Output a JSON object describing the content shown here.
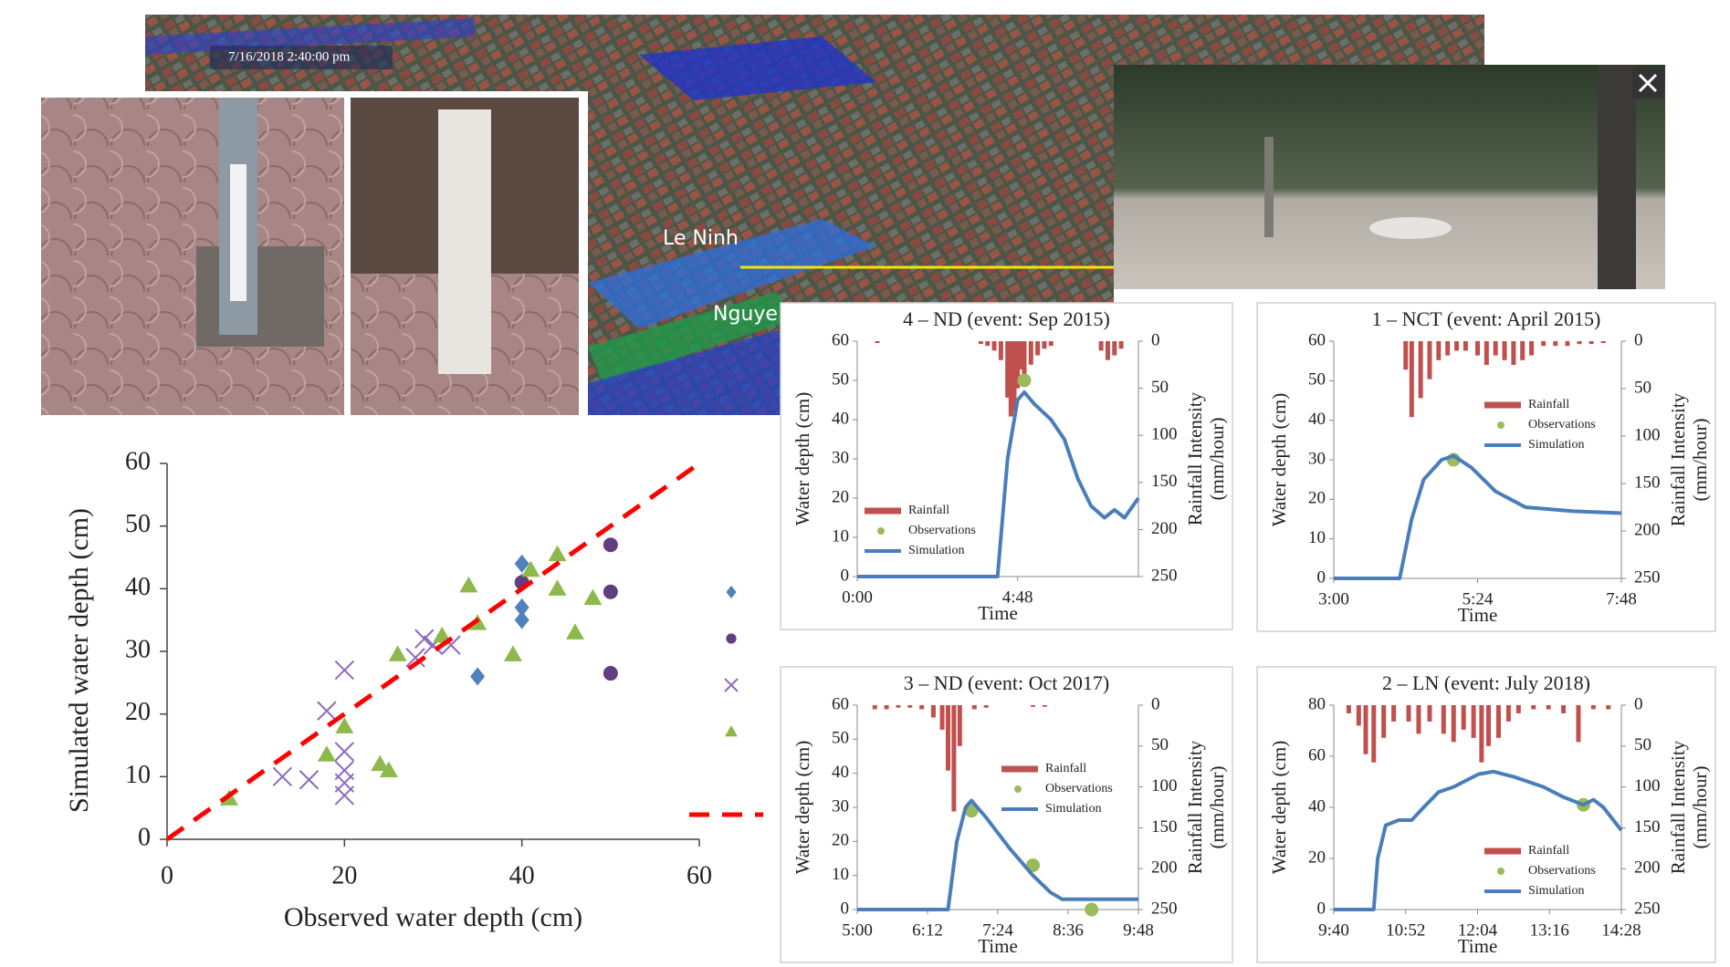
{
  "map": {
    "timestamp": "7/16/2018  2:40:00 pm",
    "place_labels": [
      "Le Ninh",
      "Nguye"
    ]
  },
  "chart_data": [
    {
      "type": "scatter",
      "xlabel": "Observed water depth (cm)",
      "ylabel": "Simulated water depth (cm)",
      "xlim": [
        0,
        60
      ],
      "ylim": [
        0,
        60
      ],
      "xticks": [
        0,
        20,
        40,
        60
      ],
      "yticks": [
        0,
        10,
        20,
        30,
        40,
        50,
        60
      ],
      "legend": "right",
      "series": [
        {
          "marker": "diamond",
          "color": "#4f81bd",
          "x": [
            35,
            40,
            40,
            40,
            40
          ],
          "values": [
            26,
            44,
            41,
            37,
            35
          ]
        },
        {
          "marker": "circle",
          "color": "#5f3f7f",
          "x": [
            40,
            50,
            50,
            50
          ],
          "values": [
            41,
            47,
            39.5,
            26.5
          ]
        },
        {
          "marker": "x",
          "color": "#8e6bbf",
          "x": [
            13,
            16,
            18,
            20,
            20,
            20,
            20,
            20,
            28,
            29,
            30,
            32
          ],
          "values": [
            10,
            9.5,
            20.5,
            27,
            14,
            11,
            9,
            7,
            29,
            32,
            31,
            31
          ]
        },
        {
          "marker": "triangle",
          "color": "#8db94a",
          "x": [
            7,
            18,
            20,
            24,
            25,
            26,
            31,
            34,
            35,
            39,
            41,
            44,
            44,
            46,
            48
          ],
          "values": [
            6.5,
            13.5,
            18,
            12,
            11,
            29.5,
            32.5,
            40.5,
            34.5,
            29.5,
            43,
            45.5,
            40,
            33,
            38.5
          ]
        },
        {
          "marker": "dashed-line",
          "color": "#ff0000",
          "x": [
            0,
            60
          ],
          "values": [
            0,
            60
          ]
        }
      ]
    },
    {
      "type": "line",
      "title": "4 – ND (event: Sep 2015)",
      "xlabel": "Time",
      "ylabel": "Water depth (cm)",
      "y2label": [
        "Rainfall Intensity",
        "(mm/hour)"
      ],
      "xlim": [
        0,
        505
      ],
      "xticks": [
        {
          "value": 0,
          "label": "0:00"
        },
        {
          "value": 288,
          "label": "4:48"
        }
      ],
      "ylim": [
        0,
        60
      ],
      "yticks": [
        0,
        10,
        20,
        30,
        40,
        50,
        60
      ],
      "y2lim": [
        250,
        0
      ],
      "y2ticks": [
        0,
        50,
        100,
        150,
        200,
        250
      ],
      "legend": "lower left",
      "series": [
        {
          "name": "Rainfall",
          "type": "bar",
          "axis": "y2",
          "color": "#c0504d",
          "x": [
            36,
            222,
            234,
            246,
            258,
            270,
            276,
            282,
            288,
            294,
            300,
            312,
            324,
            336,
            348,
            438,
            450,
            462,
            474
          ],
          "values": [
            2,
            3,
            5,
            10,
            20,
            60,
            80,
            75,
            50,
            30,
            40,
            25,
            15,
            8,
            5,
            10,
            20,
            15,
            8
          ]
        },
        {
          "name": "Observations",
          "type": "scatter",
          "color": "#9bbb59",
          "x": [
            300
          ],
          "values": [
            50
          ]
        },
        {
          "name": "Simulation",
          "type": "line",
          "color": "#4a7ebb",
          "x": [
            0,
            252,
            270,
            288,
            300,
            318,
            348,
            372,
            396,
            420,
            444,
            462,
            480,
            505
          ],
          "values": [
            0,
            0,
            30,
            45,
            47,
            44,
            40,
            35,
            25,
            18,
            15,
            17,
            15,
            20
          ]
        }
      ]
    },
    {
      "type": "line",
      "title": "1 – NCT (event: April 2015)",
      "xlabel": "Time",
      "ylabel": "Water depth (cm)",
      "y2label": [
        "Rainfall Intensity",
        "(mm/hour)"
      ],
      "xlim": [
        180,
        468
      ],
      "xticks": [
        {
          "value": 180,
          "label": "3:00"
        },
        {
          "value": 324,
          "label": "5:24"
        },
        {
          "value": 468,
          "label": "7:48"
        }
      ],
      "ylim": [
        0,
        60
      ],
      "yticks": [
        0,
        10,
        20,
        30,
        40,
        50,
        60
      ],
      "y2lim": [
        250,
        0
      ],
      "y2ticks": [
        0,
        50,
        100,
        150,
        200,
        250
      ],
      "legend": "upper right",
      "series": [
        {
          "name": "Rainfall",
          "type": "bar",
          "axis": "y2",
          "color": "#c0504d",
          "x": [
            252,
            258,
            267,
            276,
            285,
            294,
            303,
            312,
            324,
            333,
            342,
            351,
            360,
            369,
            378,
            390,
            402,
            414,
            426,
            438,
            450
          ],
          "values": [
            30,
            80,
            60,
            40,
            20,
            15,
            10,
            10,
            15,
            25,
            15,
            20,
            25,
            20,
            15,
            5,
            5,
            5,
            3,
            3,
            2
          ]
        },
        {
          "name": "Observations",
          "type": "scatter",
          "color": "#9bbb59",
          "x": [
            300
          ],
          "values": [
            30
          ]
        },
        {
          "name": "Simulation",
          "type": "line",
          "color": "#4a7ebb",
          "x": [
            180,
            246,
            258,
            270,
            288,
            300,
            318,
            342,
            372,
            420,
            468
          ],
          "values": [
            0,
            0,
            15,
            25,
            30,
            31,
            28,
            22,
            18,
            17,
            16.5
          ]
        }
      ]
    },
    {
      "type": "line",
      "title": "3 – ND (event: Oct 2017)",
      "xlabel": "Time",
      "ylabel": "Water depth (cm)",
      "y2label": [
        "Rainfall Intensity",
        "(mm/hour)"
      ],
      "xlim": [
        300,
        588
      ],
      "xticks": [
        {
          "value": 300,
          "label": "5:00"
        },
        {
          "value": 372,
          "label": "6:12"
        },
        {
          "value": 444,
          "label": "7:24"
        },
        {
          "value": 516,
          "label": "8:36"
        },
        {
          "value": 588,
          "label": "9:48"
        }
      ],
      "ylim": [
        0,
        60
      ],
      "yticks": [
        0,
        10,
        20,
        30,
        40,
        50,
        60
      ],
      "y2lim": [
        250,
        0
      ],
      "y2ticks": [
        0,
        50,
        100,
        150,
        200,
        250
      ],
      "legend": "upper right",
      "series": [
        {
          "name": "Rainfall",
          "type": "bar",
          "axis": "y2",
          "color": "#c0504d",
          "x": [
            318,
            330,
            342,
            354,
            366,
            378,
            387,
            393,
            399,
            405,
            420,
            432,
            480,
            492
          ],
          "values": [
            5,
            5,
            3,
            3,
            5,
            15,
            30,
            80,
            130,
            50,
            5,
            3,
            2,
            2
          ]
        },
        {
          "name": "Observations",
          "type": "scatter",
          "color": "#9bbb59",
          "x": [
            417,
            480,
            540
          ],
          "values": [
            29,
            13,
            0
          ]
        },
        {
          "name": "Simulation",
          "type": "line",
          "color": "#4a7ebb",
          "x": [
            300,
            393,
            402,
            411,
            417,
            432,
            456,
            480,
            498,
            510,
            588
          ],
          "values": [
            0,
            0,
            20,
            30,
            32,
            27,
            18,
            10,
            5,
            3,
            3
          ]
        }
      ]
    },
    {
      "type": "line",
      "title": "2 – LN (event: July 2018)",
      "xlabel": "Time",
      "ylabel": "Water depth (cm)",
      "y2label": [
        "Rainfall Intensity",
        "(mm/hour)"
      ],
      "xlim": [
        580,
        868
      ],
      "xticks": [
        {
          "value": 580,
          "label": "9:40"
        },
        {
          "value": 652,
          "label": "10:52"
        },
        {
          "value": 724,
          "label": "12:04"
        },
        {
          "value": 796,
          "label": "13:16"
        },
        {
          "value": 868,
          "label": "14:28"
        }
      ],
      "ylim": [
        0,
        80
      ],
      "yticks": [
        0,
        20,
        40,
        60,
        80
      ],
      "y2lim": [
        250,
        0
      ],
      "y2ticks": [
        0,
        50,
        100,
        150,
        200,
        250
      ],
      "legend": "lower right",
      "series": [
        {
          "name": "Rainfall",
          "type": "bar",
          "axis": "y2",
          "color": "#c0504d",
          "x": [
            595,
            605,
            612,
            620,
            630,
            640,
            655,
            665,
            676,
            690,
            700,
            710,
            720,
            728,
            735,
            745,
            755,
            765,
            780,
            795,
            810,
            825,
            840,
            855
          ],
          "values": [
            10,
            25,
            60,
            70,
            40,
            20,
            20,
            35,
            20,
            35,
            45,
            30,
            40,
            70,
            50,
            40,
            20,
            10,
            5,
            5,
            10,
            45,
            5,
            5
          ]
        },
        {
          "name": "Observations",
          "type": "scatter",
          "color": "#9bbb59",
          "x": [
            830
          ],
          "values": [
            41
          ]
        },
        {
          "name": "Simulation",
          "type": "line",
          "color": "#4a7ebb",
          "x": [
            580,
            620,
            624,
            632,
            645,
            658,
            670,
            685,
            700,
            710,
            725,
            740,
            760,
            790,
            810,
            830,
            840,
            850,
            860,
            868
          ],
          "values": [
            0,
            0,
            20,
            33,
            35,
            35,
            40,
            46,
            48,
            50,
            53,
            54,
            52,
            48,
            44,
            41,
            43,
            40,
            35,
            31
          ]
        }
      ]
    }
  ]
}
